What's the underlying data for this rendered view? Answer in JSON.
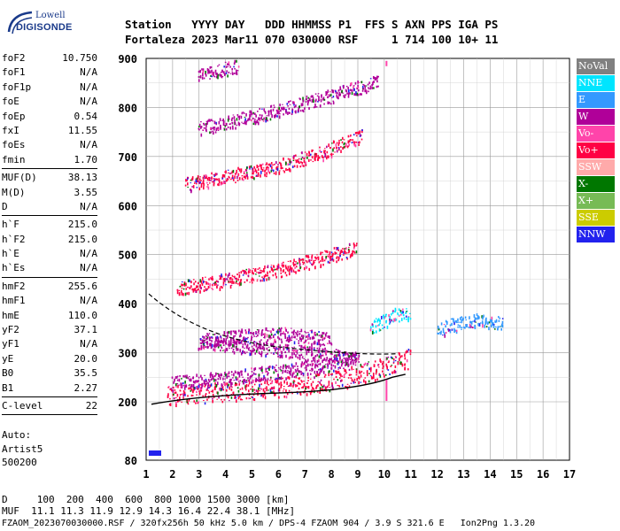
{
  "logo": {
    "top": "Lowell",
    "bottom": "DIGISONDE"
  },
  "header": {
    "line1": "Station   YYYY DAY   DDD HHMMSS P1  FFS S AXN PPS IGA PS",
    "line2": "Fortaleza 2023 Mar11 070 030000 RSF     1 714 100 10+ 11"
  },
  "params": {
    "group1": [
      {
        "k": "foF2",
        "v": "10.750"
      },
      {
        "k": "foF1",
        "v": "N/A"
      },
      {
        "k": "foF1p",
        "v": "N/A"
      },
      {
        "k": "foE",
        "v": "N/A"
      },
      {
        "k": "foEp",
        "v": "0.54"
      },
      {
        "k": "fxI",
        "v": "11.55"
      },
      {
        "k": "foEs",
        "v": "N/A"
      },
      {
        "k": "fmin",
        "v": "1.70"
      }
    ],
    "group2": [
      {
        "k": "MUF(D)",
        "v": "38.13"
      },
      {
        "k": "M(D)",
        "v": "3.55"
      },
      {
        "k": "D",
        "v": "N/A"
      }
    ],
    "group3": [
      {
        "k": "h`F",
        "v": "215.0"
      },
      {
        "k": "h`F2",
        "v": "215.0"
      },
      {
        "k": "h`E",
        "v": "N/A"
      },
      {
        "k": "h`Es",
        "v": "N/A"
      }
    ],
    "group4": [
      {
        "k": "hmF2",
        "v": "255.6"
      },
      {
        "k": "hmF1",
        "v": "N/A"
      },
      {
        "k": "hmE",
        "v": "110.0"
      },
      {
        "k": "yF2",
        "v": "37.1"
      },
      {
        "k": "yF1",
        "v": "N/A"
      },
      {
        "k": "yE",
        "v": "20.0"
      },
      {
        "k": "B0",
        "v": "35.5"
      },
      {
        "k": "B1",
        "v": "2.27"
      }
    ],
    "group5": [
      {
        "k": "C-level",
        "v": "22"
      }
    ]
  },
  "auto": [
    "Auto:",
    "Artist5",
    "500200"
  ],
  "legend": [
    {
      "label": "NoVal",
      "color": "#808080"
    },
    {
      "label": "NNE",
      "color": "#00e5ff"
    },
    {
      "label": "E",
      "color": "#3399ff"
    },
    {
      "label": "W",
      "color": "#b00099"
    },
    {
      "label": "Vo-",
      "color": "#ff44aa"
    },
    {
      "label": "Vo+",
      "color": "#ff0044"
    },
    {
      "label": "SSW",
      "color": "#ffaaaa"
    },
    {
      "label": "X-",
      "color": "#007700"
    },
    {
      "label": "X+",
      "color": "#77bb55"
    },
    {
      "label": "SSE",
      "color": "#cccc00"
    },
    {
      "label": "NNW",
      "color": "#2222ee"
    }
  ],
  "footer": {
    "line1": "D     100  200  400  600  800 1000 1500 3000 [km]",
    "line2": "MUF  11.1 11.3 11.9 12.9 14.3 16.4 22.4 38.1 [MHz]",
    "line3": "FZAOM_2023070030000.RSF / 320fx256h 50 kHz 5.0 km / DPS-4 FZAOM 904 / 3.9 S 321.6 E   Ion2Png 1.3.20"
  },
  "chart_data": {
    "type": "scatter",
    "xlim": [
      1,
      17
    ],
    "ylim": [
      80,
      900
    ],
    "xticks": [
      "1",
      "2",
      "3",
      "4",
      "5",
      "6",
      "7",
      "8",
      "9",
      "10",
      "11",
      "12",
      "13",
      "14",
      "15",
      "16",
      "17"
    ],
    "yticks": [
      "80",
      "200",
      "300",
      "400",
      "500",
      "600",
      "700",
      "800",
      "900"
    ],
    "grid": true,
    "series": [
      {
        "color": "#ff0044",
        "points": [
          [
            1.8,
            222
          ],
          [
            2.5,
            224
          ],
          [
            3.5,
            228
          ],
          [
            4.5,
            232
          ],
          [
            5.5,
            236
          ],
          [
            6.5,
            241
          ],
          [
            7.5,
            248
          ],
          [
            8.5,
            258
          ],
          [
            9.5,
            272
          ],
          [
            10.5,
            290
          ],
          [
            11.0,
            298
          ]
        ]
      },
      {
        "color": "#b00099",
        "points": [
          [
            2.0,
            245
          ],
          [
            3.0,
            250
          ],
          [
            4.0,
            255
          ],
          [
            5.0,
            262
          ],
          [
            6.0,
            268
          ],
          [
            7.0,
            275
          ],
          [
            8.0,
            285
          ],
          [
            9.0,
            295
          ],
          [
            3.0,
            330
          ],
          [
            4.5,
            340
          ],
          [
            6.0,
            345
          ],
          [
            8.0,
            335
          ]
        ]
      },
      {
        "color": "#00e5ff",
        "points": [
          [
            9.5,
            360
          ],
          [
            10.0,
            372
          ],
          [
            10.5,
            385
          ],
          [
            11.0,
            380
          ]
        ]
      },
      {
        "color": "#3399ff",
        "points": [
          [
            12.0,
            350
          ],
          [
            12.5,
            362
          ],
          [
            13.0,
            370
          ],
          [
            13.5,
            372
          ],
          [
            14.0,
            368
          ],
          [
            14.5,
            366
          ]
        ]
      },
      {
        "color": "#ff0044",
        "points": [
          [
            2.2,
            440
          ],
          [
            3.0,
            445
          ],
          [
            4.0,
            455
          ],
          [
            5.0,
            465
          ],
          [
            6.0,
            475
          ],
          [
            7.0,
            490
          ],
          [
            8.0,
            505
          ],
          [
            9.0,
            520
          ]
        ]
      },
      {
        "color": "#ff0044",
        "points": [
          [
            2.5,
            650
          ],
          [
            3.5,
            660
          ],
          [
            4.5,
            670
          ],
          [
            5.5,
            680
          ],
          [
            6.5,
            695
          ],
          [
            7.5,
            712
          ],
          [
            8.5,
            735
          ],
          [
            9.2,
            750
          ]
        ]
      },
      {
        "color": "#b00099",
        "points": [
          [
            3.0,
            765
          ],
          [
            4.0,
            775
          ],
          [
            5.0,
            788
          ],
          [
            6.0,
            800
          ],
          [
            7.0,
            815
          ],
          [
            8.0,
            830
          ],
          [
            9.0,
            848
          ],
          [
            9.8,
            860
          ]
        ]
      },
      {
        "color": "#b00099",
        "points": [
          [
            3.0,
            870
          ],
          [
            3.5,
            878
          ],
          [
            4.0,
            885
          ],
          [
            4.5,
            890
          ]
        ]
      }
    ]
  }
}
